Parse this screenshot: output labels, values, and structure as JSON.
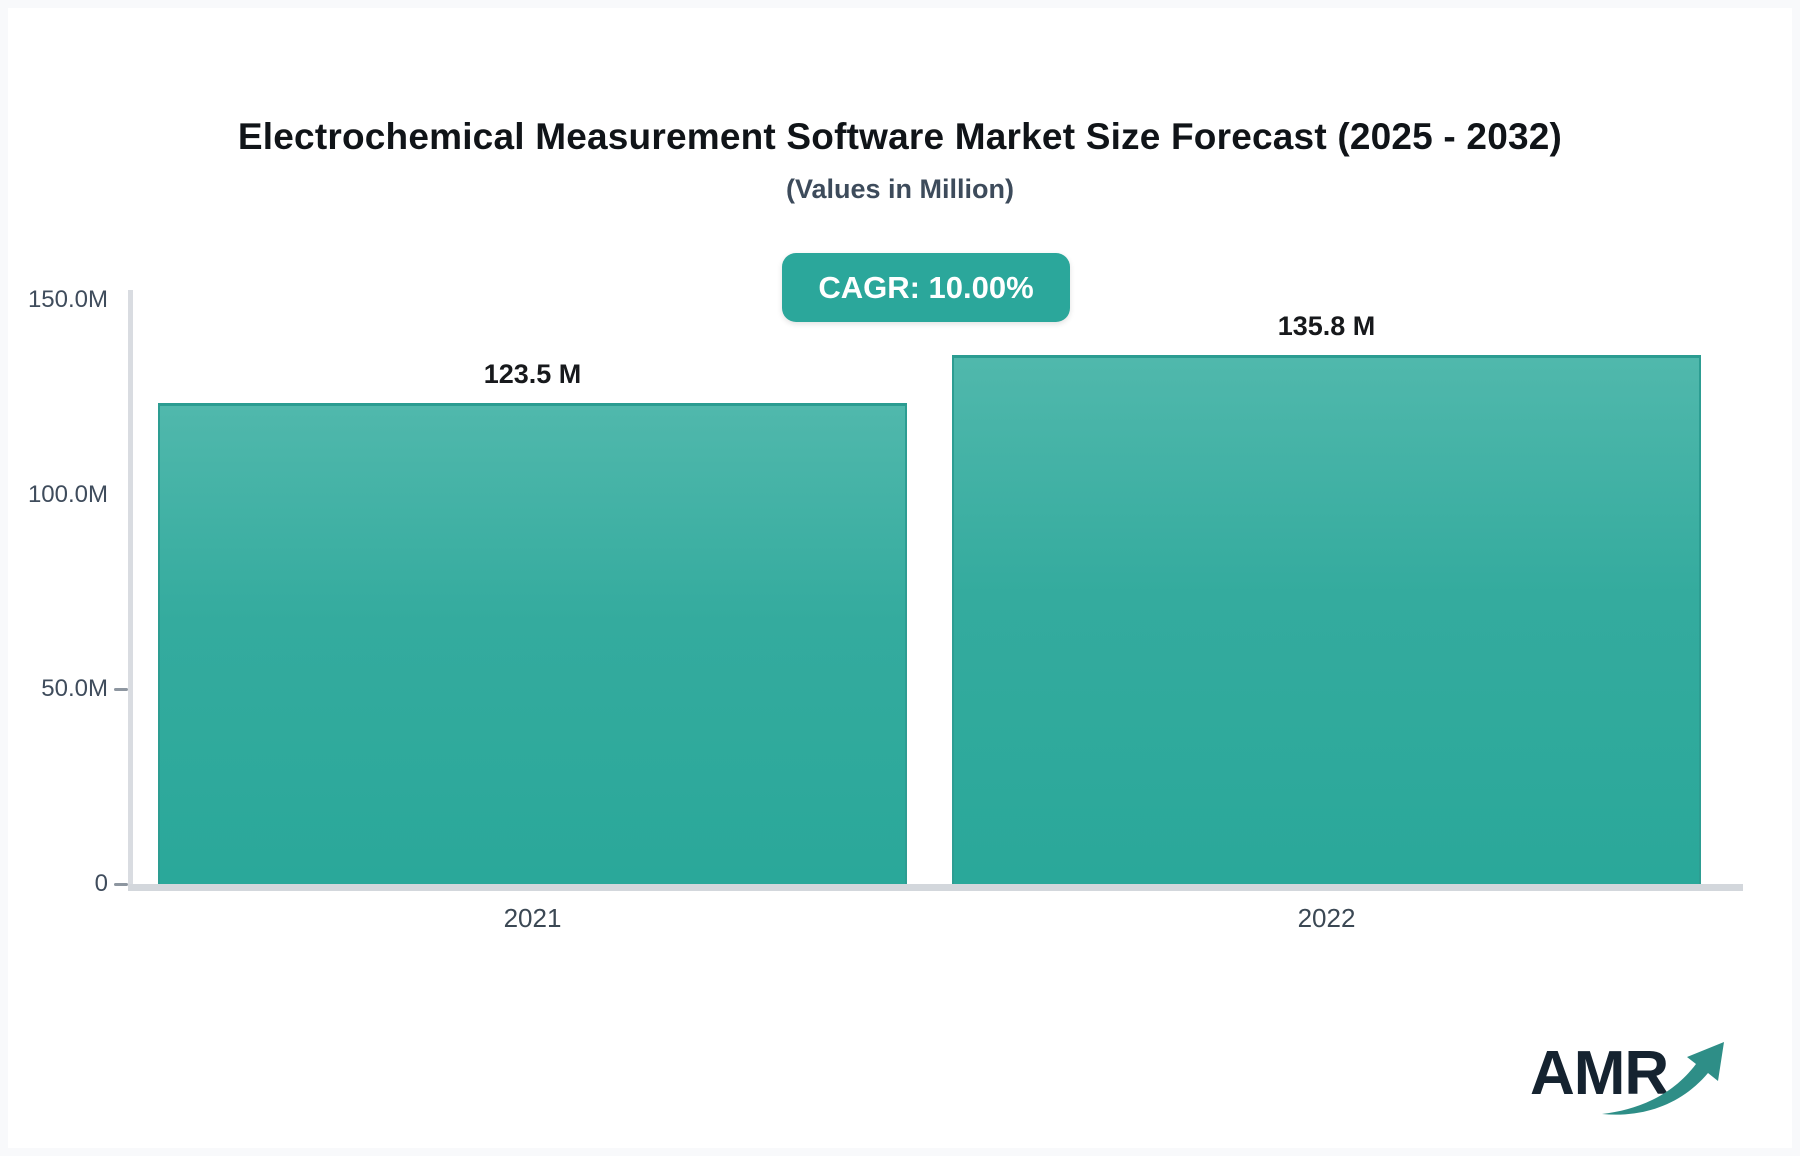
{
  "page": {
    "background": "#f8f9fb",
    "card_background": "#ffffff"
  },
  "header": {
    "title": "Electrochemical Measurement Software Market Size Forecast (2025 - 2032)",
    "subtitle": "(Values in Million)"
  },
  "badge": {
    "label": "CAGR: 10.00%",
    "background": "#2ba79b",
    "text_color": "#ffffff"
  },
  "chart_data": {
    "type": "bar",
    "title": "Electrochemical Measurement Software Market Size Forecast (2025 - 2032)",
    "subtitle": "(Values in Million)",
    "unit": "Million",
    "categories": [
      "2021",
      "2022"
    ],
    "values": [
      123.5,
      135.8
    ],
    "value_labels": [
      "123.5 M",
      "135.8 M"
    ],
    "cagr_percent": "10.00%",
    "xlabel": "",
    "ylabel": "",
    "ylim": [
      0,
      150
    ],
    "yticks": [
      {
        "value": 150,
        "label": "150.0M",
        "dash": false
      },
      {
        "value": 100,
        "label": "100.0M",
        "dash": false
      },
      {
        "value": 50,
        "label": "50.0M",
        "dash": true
      },
      {
        "value": 0,
        "label": "0",
        "dash": true
      }
    ],
    "grid": false,
    "legend_position": "none",
    "bar_color_top": "#50b8ac",
    "bar_color_bottom": "#2aa89a",
    "axis_color": "#d9dce1"
  },
  "logo": {
    "text": "AMR",
    "text_color": "#152330",
    "arrow_color": "#2e8e87"
  }
}
